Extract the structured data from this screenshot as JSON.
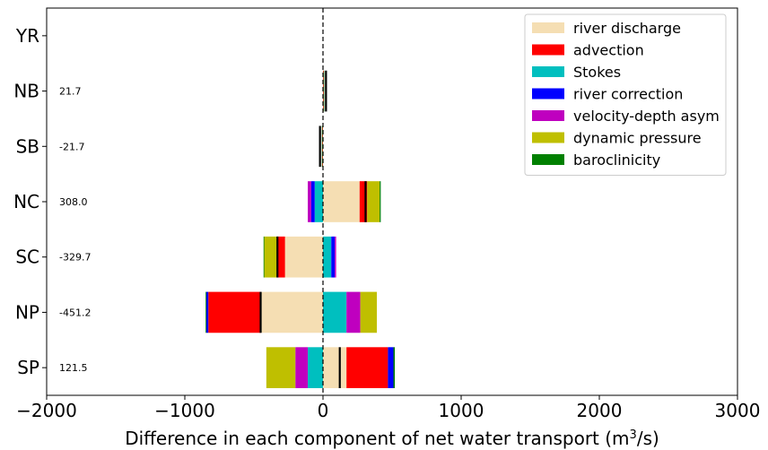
{
  "chart_data": {
    "type": "bar",
    "orientation": "horizontal",
    "stacked": "diverging",
    "xlabel": "Difference in each component of net water transport (m³/s)",
    "xlim": [
      -2000,
      3000
    ],
    "xticks": [
      -2000,
      -1000,
      0,
      1000,
      2000,
      3000
    ],
    "xtick_labels": [
      "−2000",
      "−1000",
      "0",
      "1000",
      "2000",
      "3000"
    ],
    "categories": [
      "SP",
      "NP",
      "SC",
      "NC",
      "SB",
      "NB",
      "YR"
    ],
    "net_values": [
      121.5,
      -451.2,
      -329.7,
      308.0,
      -21.7,
      21.7,
      null
    ],
    "net_labels": [
      "121.5",
      "-451.2",
      "-329.7",
      "308.0",
      "-21.7",
      "21.7",
      ""
    ],
    "zero_line": "dashed",
    "legend": "top-right",
    "grid": false,
    "series": [
      {
        "name": "river discharge",
        "color": "#f5deb3",
        "values": [
          170,
          -450,
          -275,
          265,
          0,
          0,
          0
        ]
      },
      {
        "name": "advection",
        "color": "#ff0000",
        "values": [
          300,
          -380,
          -55,
          55,
          -5,
          5,
          0
        ]
      },
      {
        "name": "Stokes",
        "color": "#00bfbf",
        "values": [
          -110,
          170,
          60,
          -60,
          0,
          0,
          0
        ]
      },
      {
        "name": "river correction",
        "color": "#0000ff",
        "values": [
          40,
          -15,
          25,
          -25,
          0,
          0,
          0
        ]
      },
      {
        "name": "velocity-depth asym",
        "color": "#bf00bf",
        "values": [
          -90,
          100,
          10,
          -25,
          0,
          0,
          0
        ]
      },
      {
        "name": "dynamic pressure",
        "color": "#bfbf00",
        "values": [
          -210,
          120,
          -95,
          90,
          0,
          0,
          0
        ]
      },
      {
        "name": "baroclinicity",
        "color": "#008000",
        "values": [
          10,
          -5,
          -5,
          8,
          -3,
          3,
          0
        ]
      }
    ]
  }
}
